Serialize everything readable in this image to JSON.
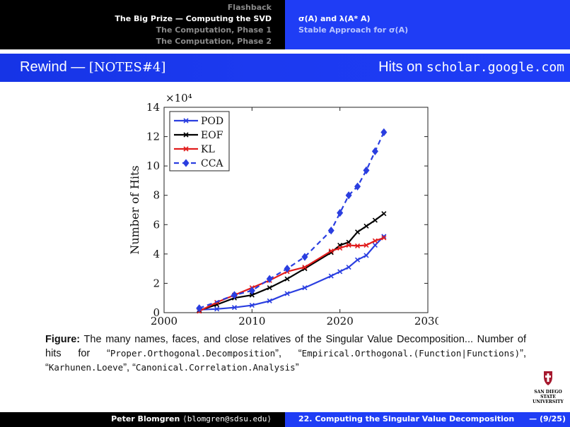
{
  "header": {
    "left_nav": [
      {
        "label": "Flashback",
        "active": false
      },
      {
        "label": "The Big Prize — Computing the SVD",
        "active": true
      },
      {
        "label": "The Computation, Phase 1",
        "active": false
      },
      {
        "label": "The Computation, Phase 2",
        "active": false
      }
    ],
    "right_nav": [
      {
        "label": "σ(A) and λ(A* A)",
        "active": true
      },
      {
        "label": "Stable Approach for σ(A)",
        "active": false
      }
    ]
  },
  "frame": {
    "title_main": "Rewind — ",
    "title_ref": "[NOTES#4]",
    "title_right_text": "Hits on ",
    "title_right_mono": "scholar.google.com"
  },
  "chart_data": {
    "type": "line",
    "ylabel": "Number of Hits",
    "y_multiplier": "×10⁴",
    "xlim": [
      2000,
      2030
    ],
    "ylim": [
      0,
      14
    ],
    "x_ticks": [
      "2000",
      "2010",
      "2020",
      "2030"
    ],
    "y_ticks": [
      "0",
      "2",
      "4",
      "6",
      "8",
      "10",
      "12",
      "14"
    ],
    "legend_position": "top-left",
    "grid": false,
    "series": [
      {
        "name": "POD",
        "color": "#2a3ee0",
        "dash": false,
        "marker": "x",
        "x": [
          2004,
          2006,
          2008,
          2010,
          2012,
          2014,
          2016,
          2019,
          2020,
          2021,
          2022,
          2023,
          2024,
          2025
        ],
        "y": [
          0.2,
          0.25,
          0.35,
          0.5,
          0.8,
          1.3,
          1.7,
          2.5,
          2.8,
          3.1,
          3.6,
          3.9,
          4.6,
          5.2
        ]
      },
      {
        "name": "EOF",
        "color": "#000000",
        "dash": false,
        "marker": "x",
        "x": [
          2004,
          2006,
          2008,
          2010,
          2012,
          2014,
          2016,
          2019,
          2020,
          2021,
          2022,
          2023,
          2024,
          2025
        ],
        "y": [
          0.15,
          0.55,
          1.0,
          1.2,
          1.7,
          2.3,
          3.0,
          4.1,
          4.6,
          4.8,
          5.5,
          5.9,
          6.3,
          6.75
        ]
      },
      {
        "name": "KL",
        "color": "#e11c1c",
        "dash": false,
        "marker": "x",
        "x": [
          2004,
          2006,
          2008,
          2010,
          2012,
          2014,
          2016,
          2019,
          2020,
          2021,
          2022,
          2023,
          2024,
          2025
        ],
        "y": [
          0.1,
          0.7,
          1.2,
          1.7,
          2.2,
          2.8,
          3.1,
          4.2,
          4.4,
          4.6,
          4.55,
          4.6,
          4.9,
          5.1
        ]
      },
      {
        "name": "CCA",
        "color": "#2a3ee0",
        "dash": true,
        "marker": "diamond",
        "x": [
          2004,
          2008,
          2010,
          2012,
          2014,
          2016,
          2019,
          2020,
          2021,
          2022,
          2023,
          2024,
          2025
        ],
        "y": [
          0.3,
          1.2,
          1.5,
          2.3,
          3.0,
          3.8,
          5.6,
          6.8,
          8.0,
          8.6,
          9.7,
          11.0,
          12.3
        ]
      }
    ]
  },
  "caption": {
    "label": "Figure:",
    "text1": " The many names, faces, and close relatives of the Singular Value Decomposition... Number of hits for “",
    "mono1": "Proper.Orthogonal.Decomposition",
    "text2": "”, “",
    "mono2": "Empirical.Orthogonal.(Function|Functions)",
    "text3": "”, “",
    "mono3": "Karhunen.Loeve",
    "text4": "”, “",
    "mono4": "Canonical.Correlation.Analysis",
    "text5": "”"
  },
  "logo": {
    "line1": "SAN DIEGO STATE",
    "line2": "UNIVERSITY"
  },
  "footer": {
    "author": "Peter Blomgren ",
    "email": "⟨blomgren@sdsu.edu⟩",
    "title": "22. Computing the Singular Value Decomposition",
    "page": "— (9/25)"
  }
}
